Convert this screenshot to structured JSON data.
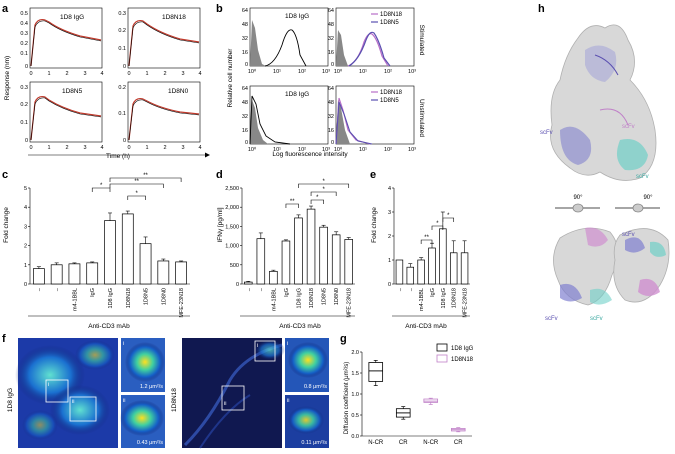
{
  "panel_labels": {
    "a": "a",
    "b": "b",
    "c": "c",
    "d": "d",
    "e": "e",
    "f": "f",
    "g": "g",
    "h": "h"
  },
  "panel_a": {
    "ylabel": "Response (nm)",
    "xlabel": "Time (h)",
    "subplots": [
      {
        "title": "1D8 IgG",
        "yticks": [
          "0.5",
          "0.4",
          "0.3",
          "0.2",
          "0.1",
          "0"
        ],
        "xticks": [
          "0",
          "1",
          "2",
          "3",
          "4"
        ]
      },
      {
        "title": "1D8N18",
        "yticks": [
          "0.3",
          "0.2",
          "0.1",
          "0"
        ],
        "xticks": [
          "0",
          "1",
          "2",
          "3",
          "4"
        ]
      },
      {
        "title": "1D8N5",
        "yticks": [
          "0.3",
          "0.2",
          "0.1",
          "0"
        ],
        "xticks": [
          "0",
          "1",
          "2",
          "3",
          "4"
        ]
      },
      {
        "title": "1D8N0",
        "yticks": [
          "0.2",
          "0.1",
          "0"
        ],
        "xticks": [
          "0",
          "1",
          "2",
          "3",
          "4"
        ]
      }
    ]
  },
  "panel_b": {
    "ylabel": "Relative cell number",
    "xlabel": "Log fluorescence intensity",
    "row_labels": [
      "Stimulated",
      "Unstimulated"
    ],
    "top_left": {
      "title": "1D8 IgG",
      "yticks": [
        "64",
        "48",
        "32",
        "16",
        "0"
      ],
      "xticks": [
        "10⁰",
        "10¹",
        "10²",
        "10³"
      ]
    },
    "top_right": {
      "legend": [
        "1D8N18",
        "1D8N5"
      ],
      "yticks": [
        "64",
        "48",
        "32",
        "16",
        "0"
      ],
      "xticks": [
        "10⁰",
        "10¹",
        "10²",
        "10³"
      ]
    },
    "bottom_left": {
      "title": "1D8 IgG",
      "yticks": [
        "64",
        "48",
        "32",
        "16",
        "0"
      ],
      "xticks": [
        "10⁰",
        "10¹",
        "10²",
        "10³"
      ]
    },
    "bottom_right": {
      "legend": [
        "1D8N18",
        "1D8N5"
      ],
      "yticks": [
        "64",
        "48",
        "32",
        "16",
        "0"
      ],
      "xticks": [
        "10⁰",
        "10¹",
        "10²",
        "10³"
      ]
    }
  },
  "chart_data": [
    {
      "panel": "c",
      "type": "bar",
      "ylabel": "Fold change",
      "xgroup": "Anti-CD3 mAb",
      "ylim": [
        0,
        5
      ],
      "yticks": [
        "0",
        "1",
        "2",
        "3",
        "4",
        "5"
      ],
      "categories": [
        "–",
        "–",
        "m4-1BBL",
        "IgG",
        "1D8 IgG",
        "1D8N18",
        "1D8N5",
        "1D8N0",
        "MFE-23N18"
      ],
      "values": [
        0.8,
        1.0,
        1.05,
        1.1,
        3.3,
        3.65,
        2.1,
        1.2,
        1.15
      ],
      "errors": [
        0.1,
        0.1,
        0.05,
        0.05,
        0.4,
        0.15,
        0.35,
        0.1,
        0.05
      ],
      "significance": [
        "*",
        "*",
        "**",
        "**"
      ]
    },
    {
      "panel": "d",
      "type": "bar",
      "ylabel": "IFNγ [pg/ml]",
      "xgroup": "Anti-CD3 mAb",
      "ylim": [
        0,
        2500
      ],
      "yticks": [
        "0",
        "500",
        "1,000",
        "1,500",
        "2,000",
        "2,500"
      ],
      "categories": [
        "–",
        "–",
        "m4-1BBL",
        "IgG",
        "1D8 IgG",
        "1D8N18",
        "1D8N5",
        "1D8N0",
        "MFE-23N18"
      ],
      "values": [
        50,
        1180,
        330,
        1120,
        1720,
        1950,
        1480,
        1280,
        1160
      ],
      "errors": [
        20,
        150,
        30,
        30,
        80,
        80,
        50,
        80,
        50
      ],
      "significance": [
        "**",
        "*",
        "*",
        "*"
      ]
    },
    {
      "panel": "e",
      "type": "bar",
      "ylabel": "Fold change",
      "xgroup": "Anti-CD3 mAb",
      "ylim": [
        0,
        4
      ],
      "yticks": [
        "0",
        "1",
        "2",
        "3",
        "4"
      ],
      "categories": [
        "–",
        "–",
        "m4-1BBL",
        "IgG",
        "1D8 IgG",
        "1D8N18",
        "MFE-23N18"
      ],
      "values": [
        1.0,
        0.7,
        1.0,
        1.5,
        2.3,
        1.3,
        1.3
      ],
      "errors": [
        0.0,
        0.15,
        0.1,
        0.2,
        0.7,
        0.5,
        0.5
      ],
      "significance": [
        "**",
        "*",
        "*"
      ]
    },
    {
      "panel": "g",
      "type": "box",
      "ylabel": "Diffusion coefficient (μm²/s)",
      "ylim": [
        0,
        2.0
      ],
      "yticks": [
        "0.0",
        "0.5",
        "1.0",
        "1.5",
        "2.0"
      ],
      "categories": [
        "N-CR",
        "CR",
        "N-CR",
        "CR"
      ],
      "legend": [
        "1D8 IgG",
        "1D8N18"
      ],
      "legend_colors": [
        "#000000",
        "#c080c8"
      ],
      "series": [
        {
          "name": "1D8 IgG",
          "boxes": [
            {
              "category": "N-CR",
              "min": 1.2,
              "q1": 1.3,
              "median": 1.55,
              "q3": 1.75,
              "max": 1.8
            },
            {
              "category": "CR",
              "min": 0.4,
              "q1": 0.45,
              "median": 0.55,
              "q3": 0.65,
              "max": 0.7
            }
          ]
        },
        {
          "name": "1D8N18",
          "boxes": [
            {
              "category": "N-CR",
              "min": 0.75,
              "q1": 0.8,
              "median": 0.83,
              "q3": 0.88,
              "max": 0.9
            },
            {
              "category": "CR",
              "min": 0.1,
              "q1": 0.12,
              "median": 0.15,
              "q3": 0.18,
              "max": 0.2
            }
          ]
        }
      ]
    }
  ],
  "panel_f": {
    "left_label": "1D8 IgG",
    "right_label": "1D8N18",
    "left_insets": [
      {
        "roman": "i",
        "value": "1.2 μm²/s"
      },
      {
        "roman": "ii",
        "value": "0.43 μm²/s"
      }
    ],
    "right_insets": [
      {
        "roman": "i",
        "value": "0.8 μm²/s"
      },
      {
        "roman": "ii",
        "value": "0.11 μm²/s"
      }
    ],
    "box_labels": [
      "i",
      "ii",
      "i",
      "ii"
    ]
  },
  "panel_h": {
    "labels": [
      "scFv",
      "scFv",
      "scFv",
      "scFv",
      "scFv",
      "scFv"
    ],
    "rot1": "90°",
    "rot2": "90°"
  },
  "colors": {
    "red": "#c0392b",
    "blue": "#5a4fb0",
    "purple": "#b86ec8",
    "teal": "#4fc8c0",
    "gray": "#888888"
  }
}
